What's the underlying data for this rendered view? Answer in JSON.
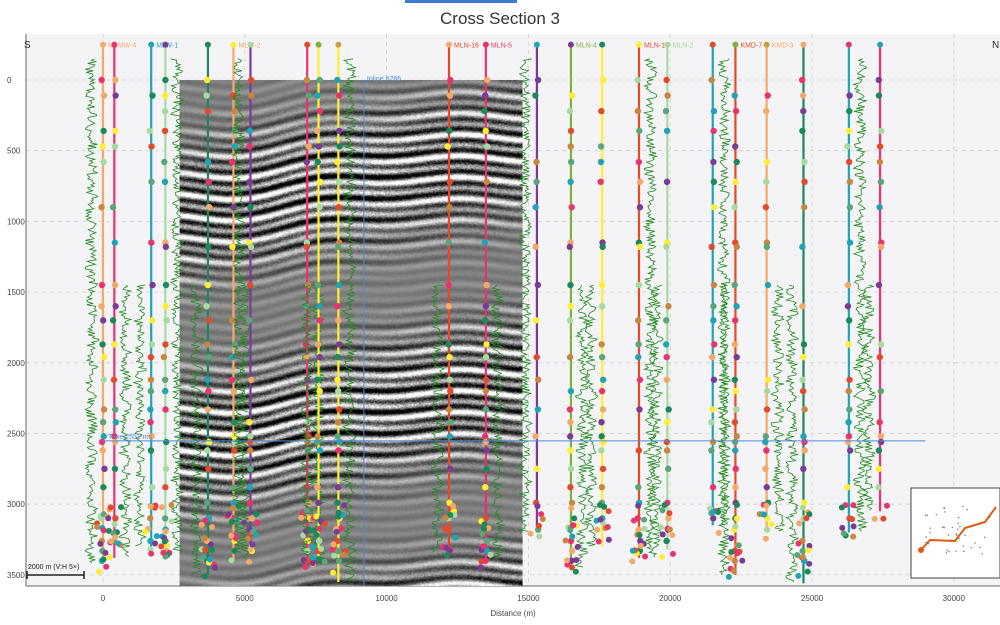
{
  "title": "Cross Section 3",
  "chart_data": {
    "type": "cross-section",
    "xlabel": "Distance (m)",
    "ylabel": "",
    "xlim": [
      -2500,
      31000
    ],
    "ylim": [
      3600,
      -250
    ],
    "x_ticks": [
      0,
      5000,
      10000,
      15000,
      20000,
      25000,
      30000
    ],
    "y_ticks": [
      0,
      500,
      1000,
      1500,
      2000,
      2500,
      3000,
      3500
    ],
    "y_tick_labels": [
      "0",
      "500",
      "1000",
      "1500",
      "2000",
      "2500",
      "3000",
      "3500"
    ],
    "grid": true,
    "left_end_label": "S",
    "right_end_label": "N",
    "seismic": {
      "x_start": 2700,
      "x_end": 14800,
      "y_top": 0,
      "y_bottom": 3600
    },
    "inline_label": "Inline 6286",
    "inline_x": 9200,
    "time_line": {
      "label": "Time 2552 ms",
      "y": 2552,
      "x_start": 0,
      "x_end": 29000
    },
    "scale_bar": "2000 m  (V:H 5×)",
    "top_colors": [
      "#f5a968",
      "#e8336d",
      "#1fa3b5",
      "#7a3a96",
      "#1a8a5c",
      "#ffee33",
      "#a6dba0",
      "#e24a2b",
      "#7fb239",
      "#c9a03f"
    ],
    "marker_colors": [
      "#e8336d",
      "#f5a968",
      "#7a3a96",
      "#1a8a5c",
      "#ffee33",
      "#a6dba0",
      "#e24a2b",
      "#c9863f",
      "#5aa57a",
      "#1fa3b5"
    ],
    "wells": [
      {
        "x": 0,
        "label": "MLMW-4",
        "color": "#f5a968",
        "top": -250,
        "bottom": 3420
      },
      {
        "x": 400,
        "label": "",
        "color": "#e8336d",
        "top": -250,
        "bottom": 3380
      },
      {
        "x": 1700,
        "label": "MLW-1",
        "color": "#1fa3b5",
        "top": -250,
        "bottom": 3300
      },
      {
        "x": 2200,
        "label": "",
        "color": "#a6dba0",
        "top": -250,
        "bottom": 3330
      },
      {
        "x": 3700,
        "label": "",
        "color": "#1a8a5c",
        "top": -250,
        "bottom": 3500
      },
      {
        "x": 4600,
        "label": "MLW-2",
        "color": "#f5a968",
        "top": -250,
        "bottom": 3400
      },
      {
        "x": 5200,
        "label": "",
        "color": "#7a3a96",
        "top": -250,
        "bottom": 3350
      },
      {
        "x": 7200,
        "label": "",
        "color": "#e8336d",
        "top": -250,
        "bottom": 3420
      },
      {
        "x": 7600,
        "label": "",
        "color": "#ffee33",
        "top": -250,
        "bottom": 3380
      },
      {
        "x": 8300,
        "label": "",
        "color": "#ffee33",
        "top": -250,
        "bottom": 3550
      },
      {
        "x": 12200,
        "label": "MLN-16",
        "color": "#e24a2b",
        "top": -250,
        "bottom": 3340
      },
      {
        "x": 13500,
        "label": "MLN-5",
        "color": "#e8336d",
        "top": -250,
        "bottom": 3400
      },
      {
        "x": 15300,
        "label": "",
        "color": "#7a3a96",
        "top": -250,
        "bottom": 3200
      },
      {
        "x": 16500,
        "label": "MLN-4",
        "color": "#7fb239",
        "top": -250,
        "bottom": 3450
      },
      {
        "x": 17600,
        "label": "",
        "color": "#ffee33",
        "top": -250,
        "bottom": 3300
      },
      {
        "x": 18900,
        "label": "MLN-1",
        "color": "#e24a2b",
        "top": -250,
        "bottom": 3380
      },
      {
        "x": 19900,
        "label": "MLN-2",
        "color": "#a6dba0",
        "top": -250,
        "bottom": 3320
      },
      {
        "x": 21500,
        "label": "",
        "color": "#1fa3b5",
        "top": -250,
        "bottom": 3150
      },
      {
        "x": 22300,
        "label": "KMD-7",
        "color": "#e24a2b",
        "top": -250,
        "bottom": 3500
      },
      {
        "x": 23400,
        "label": "KMD-3",
        "color": "#f5a968",
        "top": -250,
        "bottom": 3200
      },
      {
        "x": 24700,
        "label": "",
        "color": "#1a8a5c",
        "top": -250,
        "bottom": 3560
      },
      {
        "x": 26300,
        "label": "",
        "color": "#1fa3b5",
        "top": -250,
        "bottom": 3200
      },
      {
        "x": 27400,
        "label": "",
        "color": "#e8336d",
        "top": -250,
        "bottom": 3050
      }
    ]
  }
}
